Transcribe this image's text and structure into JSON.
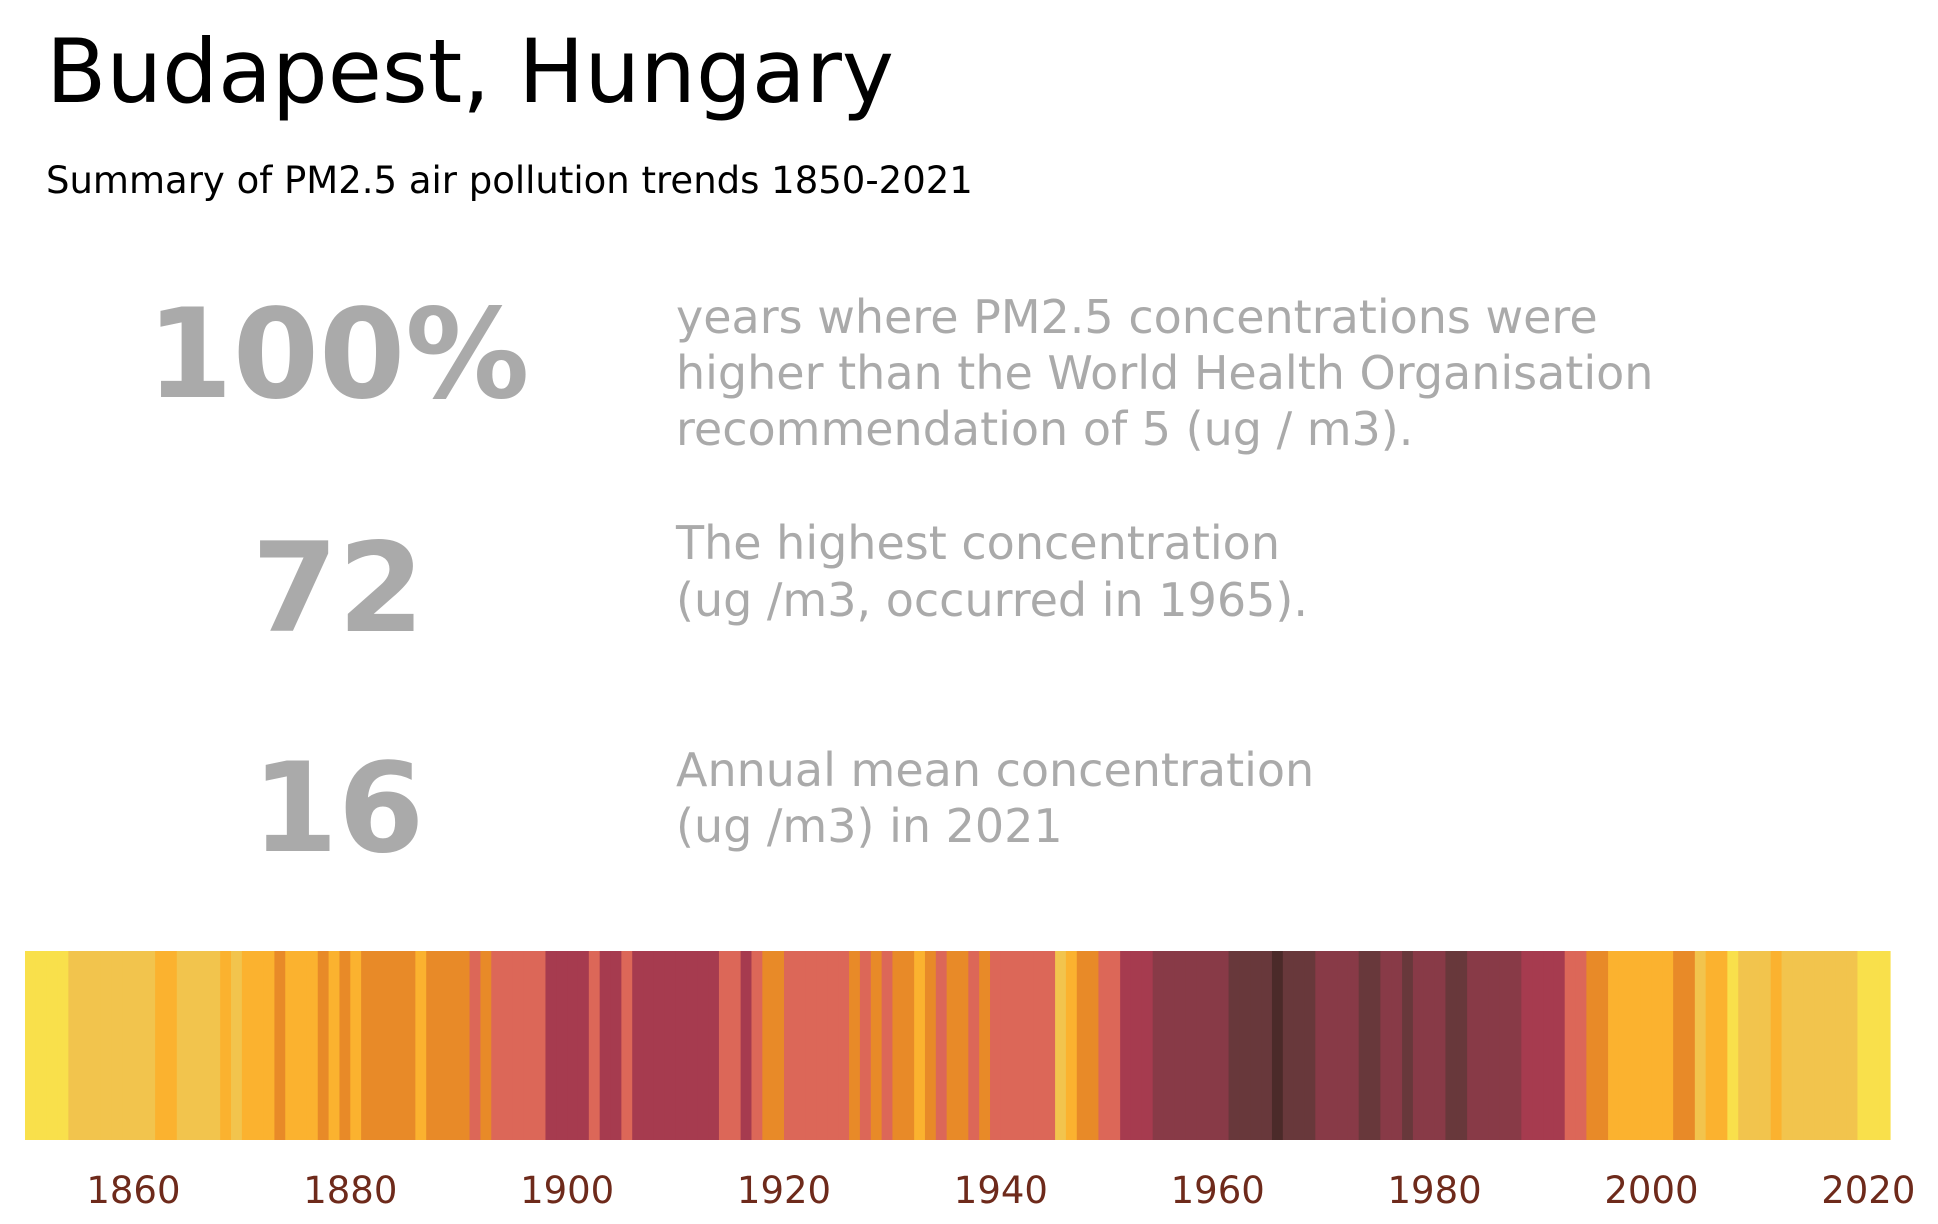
{
  "title": "Budapest, Hungary",
  "subtitle": "Summary of PM2.5 air pollution trends 1850-2021",
  "stats": [
    {
      "figure": "100%",
      "description": [
        "years where PM2.5 concentrations were",
        "higher than the World Health Organisation",
        "recommendation of 5 (ug / m3)."
      ]
    },
    {
      "figure": "72",
      "description": [
        "The highest concentration",
        "(ug /m3, occurred in 1965)."
      ]
    },
    {
      "figure": "16",
      "description": [
        "Annual mean concentration",
        "(ug /m3) in 2021"
      ]
    }
  ],
  "chart_data": {
    "type": "stripes",
    "x": [
      1850,
      1851,
      1852,
      1853,
      1854,
      1855,
      1856,
      1857,
      1858,
      1859,
      1860,
      1861,
      1862,
      1863,
      1864,
      1865,
      1866,
      1867,
      1868,
      1869,
      1870,
      1871,
      1872,
      1873,
      1874,
      1875,
      1876,
      1877,
      1878,
      1879,
      1880,
      1881,
      1882,
      1883,
      1884,
      1885,
      1886,
      1887,
      1888,
      1889,
      1890,
      1891,
      1892,
      1893,
      1894,
      1895,
      1896,
      1897,
      1898,
      1899,
      1900,
      1901,
      1902,
      1903,
      1904,
      1905,
      1906,
      1907,
      1908,
      1909,
      1910,
      1911,
      1912,
      1913,
      1914,
      1915,
      1916,
      1917,
      1918,
      1919,
      1920,
      1921,
      1922,
      1923,
      1924,
      1925,
      1926,
      1927,
      1928,
      1929,
      1930,
      1931,
      1932,
      1933,
      1934,
      1935,
      1936,
      1937,
      1938,
      1939,
      1940,
      1941,
      1942,
      1943,
      1944,
      1945,
      1946,
      1947,
      1948,
      1949,
      1950,
      1951,
      1952,
      1953,
      1954,
      1955,
      1956,
      1957,
      1958,
      1959,
      1960,
      1961,
      1962,
      1963,
      1964,
      1965,
      1966,
      1967,
      1968,
      1969,
      1970,
      1971,
      1972,
      1973,
      1974,
      1975,
      1976,
      1977,
      1978,
      1979,
      1980,
      1981,
      1982,
      1983,
      1984,
      1985,
      1986,
      1987,
      1988,
      1989,
      1990,
      1991,
      1992,
      1993,
      1994,
      1995,
      1996,
      1997,
      1998,
      1999,
      2000,
      2001,
      2002,
      2003,
      2004,
      2005,
      2006,
      2007,
      2008,
      2009,
      2010,
      2011,
      2012,
      2013,
      2014,
      2015,
      2016,
      2017,
      2018,
      2019,
      2020,
      2021
    ],
    "values": [
      16,
      16,
      16,
      16,
      19,
      19,
      19,
      19,
      19,
      19,
      19,
      19,
      22,
      22,
      19,
      19,
      19,
      19,
      22,
      19,
      22,
      22,
      22,
      26,
      22,
      22,
      22,
      26,
      22,
      26,
      22,
      26,
      26,
      26,
      26,
      26,
      22,
      26,
      26,
      26,
      26,
      31,
      26,
      31,
      31,
      31,
      31,
      31,
      38,
      38,
      38,
      38,
      31,
      38,
      38,
      31,
      38,
      38,
      38,
      38,
      38,
      38,
      38,
      38,
      31,
      31,
      38,
      31,
      26,
      26,
      31,
      31,
      31,
      31,
      31,
      31,
      26,
      31,
      26,
      31,
      26,
      26,
      22,
      26,
      31,
      26,
      26,
      31,
      26,
      31,
      31,
      31,
      31,
      31,
      31,
      19,
      22,
      26,
      26,
      31,
      31,
      38,
      38,
      38,
      46,
      46,
      46,
      46,
      46,
      46,
      46,
      56,
      56,
      56,
      56,
      72,
      56,
      56,
      56,
      46,
      46,
      46,
      46,
      56,
      56,
      46,
      46,
      56,
      46,
      46,
      46,
      56,
      56,
      46,
      46,
      46,
      46,
      46,
      38,
      38,
      38,
      38,
      31,
      31,
      26,
      26,
      22,
      22,
      22,
      22,
      22,
      22,
      26,
      26,
      19,
      22,
      22,
      16,
      19,
      19,
      19,
      22,
      19,
      19,
      19,
      19,
      19,
      19,
      19,
      16,
      16,
      16
    ],
    "colors": [
      "#f9e04b",
      "#f9e04b",
      "#f9e04b",
      "#f9e04b",
      "#f2c44d",
      "#f2c44d",
      "#f2c44d",
      "#f2c44d",
      "#f2c44d",
      "#f2c44d",
      "#f2c44d",
      "#f2c44d",
      "#fbb22f",
      "#fbb22f",
      "#f2c44d",
      "#f2c44d",
      "#f2c44d",
      "#f2c44d",
      "#fbb22f",
      "#f2c44d",
      "#fbb22f",
      "#fbb22f",
      "#fbb22f",
      "#e88a28",
      "#fbb22f",
      "#fbb22f",
      "#fbb22f",
      "#e88a28",
      "#fbb22f",
      "#e88a28",
      "#fbb22f",
      "#e88a28",
      "#e88a28",
      "#e88a28",
      "#e88a28",
      "#e88a28",
      "#fbb22f",
      "#e88a28",
      "#e88a28",
      "#e88a28",
      "#e88a28",
      "#dc6758",
      "#e88a28",
      "#dc6758",
      "#dc6758",
      "#dc6758",
      "#dc6758",
      "#dc6758",
      "#a63b4f",
      "#a63b4f",
      "#a63b4f",
      "#a63b4f",
      "#dc6758",
      "#a63b4f",
      "#a63b4f",
      "#dc6758",
      "#a63b4f",
      "#a63b4f",
      "#a63b4f",
      "#a63b4f",
      "#a63b4f",
      "#a63b4f",
      "#a63b4f",
      "#a63b4f",
      "#dc6758",
      "#dc6758",
      "#a63b4f",
      "#dc6758",
      "#e88a28",
      "#e88a28",
      "#dc6758",
      "#dc6758",
      "#dc6758",
      "#dc6758",
      "#dc6758",
      "#dc6758",
      "#e88a28",
      "#dc6758",
      "#e88a28",
      "#dc6758",
      "#e88a28",
      "#e88a28",
      "#fbb22f",
      "#e88a28",
      "#dc6758",
      "#e88a28",
      "#e88a28",
      "#dc6758",
      "#e88a28",
      "#dc6758",
      "#dc6758",
      "#dc6758",
      "#dc6758",
      "#dc6758",
      "#dc6758",
      "#f2c44d",
      "#fbb22f",
      "#e88a28",
      "#e88a28",
      "#dc6758",
      "#dc6758",
      "#a63b4f",
      "#a63b4f",
      "#a63b4f",
      "#883a47",
      "#883a47",
      "#883a47",
      "#883a47",
      "#883a47",
      "#883a47",
      "#883a47",
      "#68383b",
      "#68383b",
      "#68383b",
      "#68383b",
      "#4b2a29",
      "#68383b",
      "#68383b",
      "#68383b",
      "#883a47",
      "#883a47",
      "#883a47",
      "#883a47",
      "#68383b",
      "#68383b",
      "#883a47",
      "#883a47",
      "#68383b",
      "#883a47",
      "#883a47",
      "#883a47",
      "#68383b",
      "#68383b",
      "#883a47",
      "#883a47",
      "#883a47",
      "#883a47",
      "#883a47",
      "#a63b4f",
      "#a63b4f",
      "#a63b4f",
      "#a63b4f",
      "#dc6758",
      "#dc6758",
      "#e88a28",
      "#e88a28",
      "#fbb22f",
      "#fbb22f",
      "#fbb22f",
      "#fbb22f",
      "#fbb22f",
      "#fbb22f",
      "#e88a28",
      "#e88a28",
      "#f2c44d",
      "#fbb22f",
      "#fbb22f",
      "#f9e04b",
      "#f2c44d",
      "#f2c44d",
      "#f2c44d",
      "#fbb22f",
      "#f2c44d",
      "#f2c44d",
      "#f2c44d",
      "#f2c44d",
      "#f2c44d",
      "#f2c44d",
      "#f2c44d",
      "#f9e04b",
      "#f9e04b",
      "#f9e04b"
    ],
    "xlim": [
      1850,
      2022
    ],
    "xticks": [
      1860,
      1880,
      1900,
      1920,
      1940,
      1960,
      1980,
      2000,
      2020
    ],
    "tick_color": "#6e2a1b"
  }
}
